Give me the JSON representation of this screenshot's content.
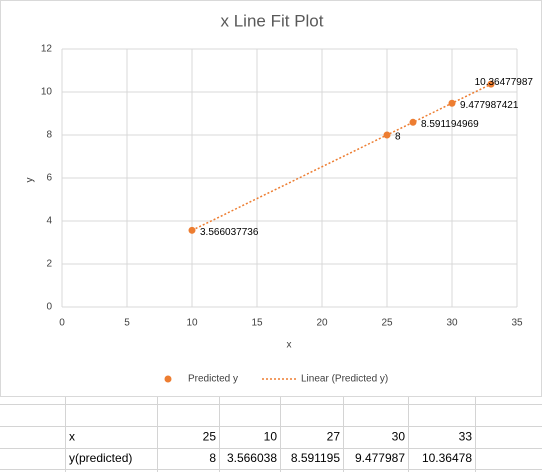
{
  "chart_data": {
    "type": "scatter",
    "title": "x Line Fit  Plot",
    "x_label": "x",
    "y_label": "y",
    "x": [
      25,
      10,
      27,
      30,
      33
    ],
    "series": [
      {
        "name": "Predicted y",
        "color": "#ed7d31",
        "values": [
          8,
          3.566037736,
          8.591194969,
          9.477987421,
          10.36477987
        ]
      }
    ],
    "trendline": {
      "name": "Linear (Predicted y)",
      "color": "#ed7d31",
      "style": "dotted"
    },
    "xlim": [
      0,
      35
    ],
    "xticks": [
      0,
      5,
      10,
      15,
      20,
      25,
      30,
      35
    ],
    "ylim": [
      0,
      12
    ],
    "yticks": [
      0,
      2,
      4,
      6,
      8,
      10,
      12
    ],
    "grid": true,
    "legend": "bottom"
  },
  "table": {
    "rows": [
      [
        "x",
        25,
        10,
        27,
        30,
        33
      ],
      [
        "y(predicted)",
        8,
        3.566038,
        8.591195,
        9.477987,
        10.36478
      ]
    ]
  }
}
